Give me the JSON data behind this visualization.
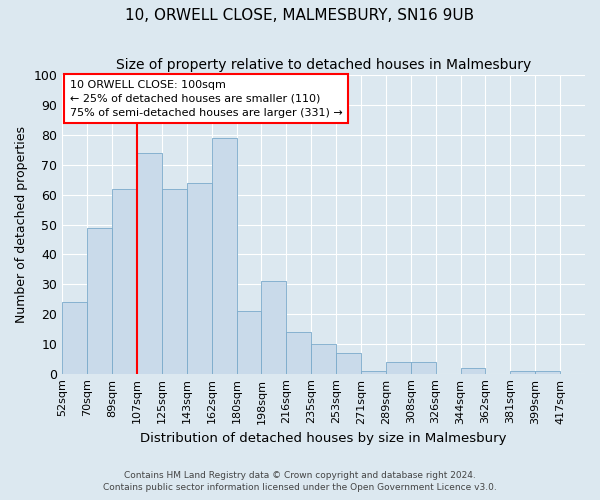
{
  "title": "10, ORWELL CLOSE, MALMESBURY, SN16 9UB",
  "subtitle": "Size of property relative to detached houses in Malmesbury",
  "xlabel": "Distribution of detached houses by size in Malmesbury",
  "ylabel": "Number of detached properties",
  "bin_labels": [
    "52sqm",
    "70sqm",
    "89sqm",
    "107sqm",
    "125sqm",
    "143sqm",
    "162sqm",
    "180sqm",
    "198sqm",
    "216sqm",
    "235sqm",
    "253sqm",
    "271sqm",
    "289sqm",
    "308sqm",
    "326sqm",
    "344sqm",
    "362sqm",
    "381sqm",
    "399sqm",
    "417sqm"
  ],
  "bar_heights": [
    24,
    49,
    62,
    74,
    62,
    64,
    79,
    21,
    31,
    14,
    10,
    7,
    1,
    4,
    4,
    0,
    2,
    0,
    1,
    1,
    0
  ],
  "bar_color": "#c9daea",
  "bar_edge_color": "#7aaacb",
  "vline_x_index": 3,
  "vline_color": "red",
  "annotation_text": "10 ORWELL CLOSE: 100sqm\n← 25% of detached houses are smaller (110)\n75% of semi-detached houses are larger (331) →",
  "ylim": [
    0,
    100
  ],
  "yticks": [
    0,
    10,
    20,
    30,
    40,
    50,
    60,
    70,
    80,
    90,
    100
  ],
  "footnote_line1": "Contains HM Land Registry data © Crown copyright and database right 2024.",
  "footnote_line2": "Contains public sector information licensed under the Open Government Licence v3.0.",
  "background_color": "#dce8f0",
  "grid_color": "white",
  "title_fontsize": 11,
  "subtitle_fontsize": 10,
  "ylabel_fontsize": 9,
  "xlabel_fontsize": 9.5
}
